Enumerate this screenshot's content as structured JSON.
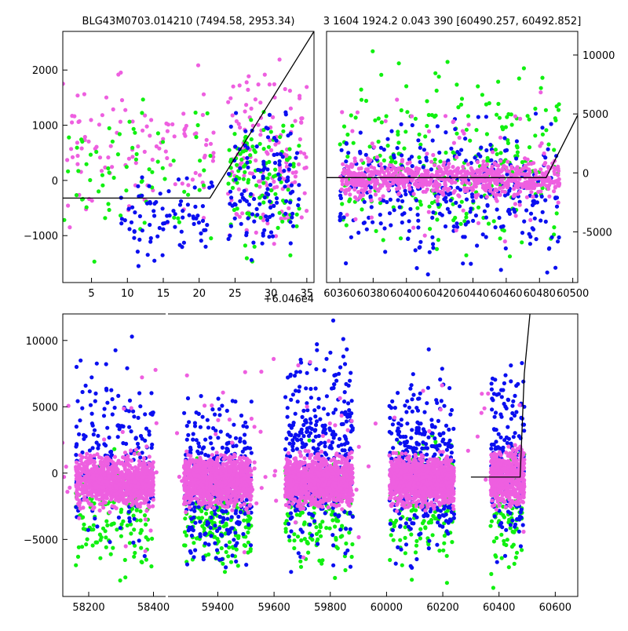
{
  "colors": {
    "blue": "#0a0ff0",
    "green": "#10f010",
    "pink": "#ee5fe0",
    "model_line": "#000000",
    "background": "#ffffff"
  },
  "chart_data": [
    {
      "type": "scatter",
      "title": "BLG43M0703.014210 (7494.58, 2953.34)",
      "x_offset_label": "+6.046e4",
      "xlim": [
        1,
        36
      ],
      "ylim": [
        -1850,
        2700
      ],
      "xticks": [
        5,
        10,
        15,
        20,
        25,
        30,
        35
      ],
      "yticks": [
        -1000,
        0,
        1000,
        2000
      ],
      "y_axis_side": "left",
      "grid": false,
      "model_line": {
        "x": [
          1,
          21.5,
          36
        ],
        "y": [
          -320,
          -320,
          2700
        ]
      },
      "series": [
        {
          "color_key": "pink",
          "regions": [
            {
              "x": [
                1,
                22
              ],
              "y": [
                -1500,
                2600
              ],
              "n": 110
            },
            {
              "x": [
                24,
                35
              ],
              "y": [
                -1700,
                2600
              ],
              "n": 150
            }
          ]
        },
        {
          "color_key": "green",
          "regions": [
            {
              "x": [
                1,
                22
              ],
              "y": [
                -1700,
                2400
              ],
              "n": 70
            },
            {
              "x": [
                24,
                34
              ],
              "y": [
                -1800,
                1900
              ],
              "n": 110
            }
          ]
        },
        {
          "color_key": "blue",
          "regions": [
            {
              "x": [
                9,
                22
              ],
              "y": [
                -1850,
                500
              ],
              "n": 80
            },
            {
              "x": [
                24,
                34
              ],
              "y": [
                -1850,
                1800
              ],
              "n": 120
            }
          ]
        }
      ]
    },
    {
      "type": "scatter",
      "title": "3 1604 1924.2 0.043 390 [60490.257, 60492.852]",
      "xlim": [
        60352,
        60503
      ],
      "ylim": [
        -9300,
        12000
      ],
      "xticks": [
        60360,
        60380,
        60400,
        60420,
        60440,
        60460,
        60480,
        60500
      ],
      "yticks": [
        -5000,
        0,
        5000,
        10000
      ],
      "y_axis_side": "right",
      "grid": false,
      "model_line": {
        "x": [
          60352,
          60484,
          60503
        ],
        "y": [
          -400,
          -400,
          4900
        ]
      },
      "series": [
        {
          "color_key": "green",
          "regions": [
            {
              "x": [
                60360,
                60492
              ],
              "y": [
                -9000,
                11000
              ],
              "n": 260
            }
          ]
        },
        {
          "color_key": "blue",
          "regions": [
            {
              "x": [
                60360,
                60492
              ],
              "y": [
                -9000,
                6000
              ],
              "n": 360
            }
          ]
        },
        {
          "color_key": "pink",
          "regions": [
            {
              "x": [
                60360,
                60492
              ],
              "y": [
                -2500,
                1500
              ],
              "n": 700
            },
            {
              "x": [
                60360,
                60492
              ],
              "y": [
                -8500,
                9500
              ],
              "n": 80
            }
          ]
        }
      ]
    },
    {
      "type": "scatter",
      "title": "",
      "xlim": [
        58120,
        60680
      ],
      "ylim": [
        -9300,
        12000
      ],
      "xticks": [
        58200,
        58400,
        59400,
        59600,
        59800,
        60000,
        60200,
        60400,
        60600
      ],
      "yticks": [
        -5000,
        0,
        5000,
        10000
      ],
      "y_axis_side": "left",
      "grid": false,
      "model_line": {
        "x": [
          60300,
          60475,
          60490,
          60510
        ],
        "y": [
          -300,
          -300,
          7500,
          12000
        ]
      },
      "series": [
        {
          "color_key": "green",
          "regions": [
            {
              "x": [
                58160,
                58400
              ],
              "y": [
                -9000,
                2500
              ],
              "n": 140
            },
            {
              "x": [
                59280,
                59520
              ],
              "y": [
                -9000,
                2500
              ],
              "n": 200
            },
            {
              "x": [
                59640,
                59880
              ],
              "y": [
                -9000,
                3500
              ],
              "n": 160
            },
            {
              "x": [
                60010,
                60240
              ],
              "y": [
                -9000,
                4500
              ],
              "n": 160
            },
            {
              "x": [
                60370,
                60490
              ],
              "y": [
                -9000,
                3500
              ],
              "n": 90
            }
          ]
        },
        {
          "color_key": "blue",
          "regions": [
            {
              "x": [
                58160,
                58400
              ],
              "y": [
                -8500,
                11500
              ],
              "n": 180
            },
            {
              "x": [
                59280,
                59520
              ],
              "y": [
                -9000,
                7500
              ],
              "n": 320
            },
            {
              "x": [
                59640,
                59880
              ],
              "y": [
                -9000,
                12000
              ],
              "n": 320
            },
            {
              "x": [
                60010,
                60240
              ],
              "y": [
                -9000,
                9800
              ],
              "n": 340
            },
            {
              "x": [
                60370,
                60490
              ],
              "y": [
                -9000,
                10500
              ],
              "n": 170
            }
          ]
        },
        {
          "color_key": "pink",
          "regions": [
            {
              "x": [
                58160,
                58400
              ],
              "y": [
                -3200,
                2000
              ],
              "n": 900
            },
            {
              "x": [
                59280,
                59520
              ],
              "y": [
                -3200,
                2000
              ],
              "n": 1000
            },
            {
              "x": [
                59640,
                59880
              ],
              "y": [
                -3200,
                2000
              ],
              "n": 1000
            },
            {
              "x": [
                60010,
                60240
              ],
              "y": [
                -3200,
                2000
              ],
              "n": 1000
            },
            {
              "x": [
                60370,
                60490
              ],
              "y": [
                -3200,
                2500
              ],
              "n": 500
            },
            {
              "x": [
                58160,
                60490
              ],
              "y": [
                -8000,
                12000
              ],
              "n": 140
            }
          ]
        }
      ]
    }
  ]
}
